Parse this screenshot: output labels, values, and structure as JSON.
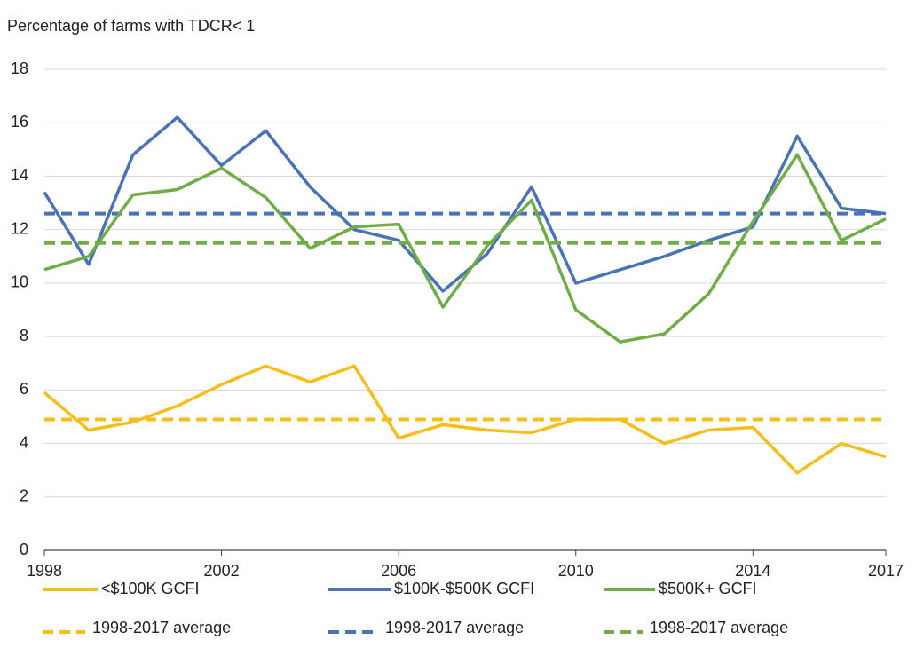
{
  "chart_data": {
    "type": "line",
    "title": "Percentage of farms with TDCR< 1",
    "x": [
      1998,
      1999,
      2000,
      2001,
      2002,
      2003,
      2004,
      2005,
      2006,
      2007,
      2008,
      2009,
      2010,
      2011,
      2012,
      2013,
      2014,
      2015,
      2016,
      2017
    ],
    "xlim": [
      1998,
      2017
    ],
    "xticks": [
      1998,
      2002,
      2006,
      2010,
      2014,
      2017
    ],
    "ylim": [
      0,
      18
    ],
    "yticks": [
      0,
      2,
      4,
      6,
      8,
      10,
      12,
      14,
      16,
      18
    ],
    "grid": true,
    "series": [
      {
        "name": "<$100K GCFI",
        "color": "#f5be18",
        "values": [
          5.9,
          4.5,
          4.8,
          5.4,
          6.2,
          6.9,
          6.3,
          6.9,
          4.2,
          4.7,
          4.5,
          4.4,
          4.9,
          4.9,
          4.0,
          4.5,
          4.6,
          2.9,
          4.0,
          3.5
        ],
        "average": 4.9,
        "average_label": "1998-2017 average"
      },
      {
        "name": "$100K-$500K GCFI",
        "color": "#4a72b8",
        "values": [
          13.4,
          10.7,
          14.8,
          16.2,
          14.4,
          15.7,
          13.6,
          12.0,
          11.6,
          9.7,
          11.1,
          13.6,
          10.0,
          10.5,
          11.0,
          11.6,
          12.1,
          15.5,
          12.8,
          12.6
        ],
        "average": 12.6,
        "average_label": "1998-2017 average"
      },
      {
        "name": "$500K+ GCFI",
        "color": "#70ad47",
        "values": [
          10.5,
          11.0,
          13.3,
          13.5,
          14.3,
          13.2,
          11.3,
          12.1,
          12.2,
          9.1,
          11.4,
          13.1,
          9.0,
          7.8,
          8.1,
          9.6,
          12.3,
          14.8,
          11.6,
          12.4
        ],
        "average": 11.5,
        "average_label": "1998-2017 average"
      }
    ]
  }
}
